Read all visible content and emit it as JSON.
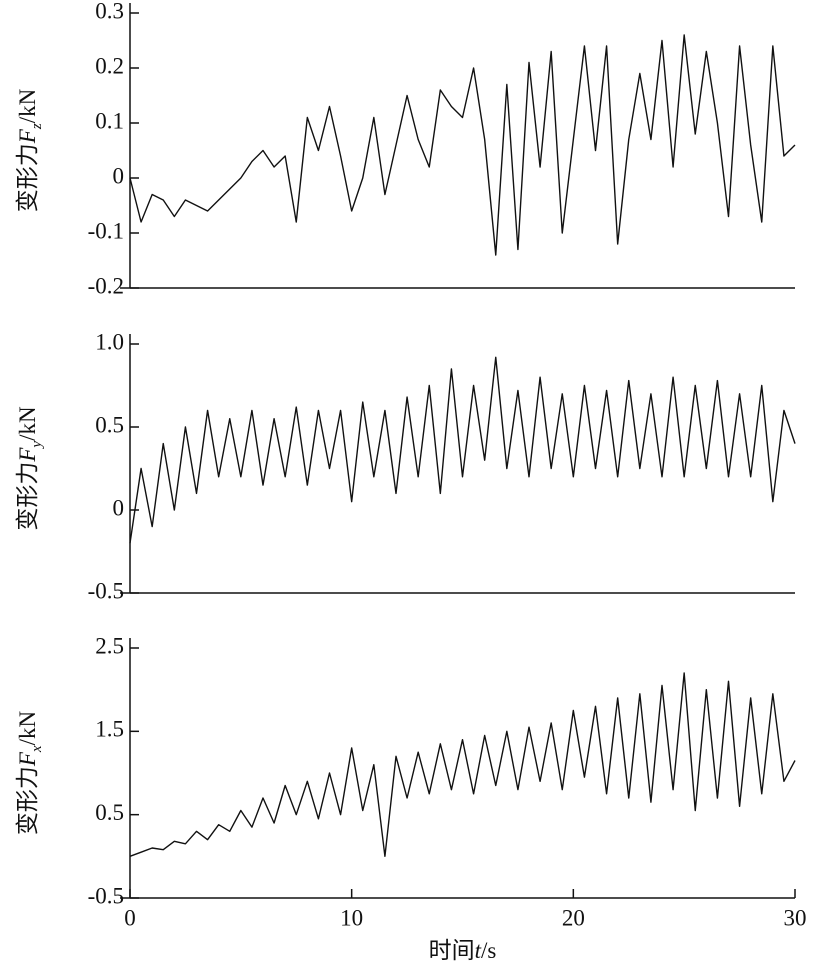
{
  "chart_data": [
    {
      "type": "line",
      "ylabel": [
        "变形力",
        "F",
        "z",
        "/kN"
      ],
      "x": [
        0,
        0.5,
        1,
        1.5,
        2,
        2.5,
        3,
        3.5,
        4,
        4.5,
        5,
        5.5,
        6,
        6.5,
        7,
        7.5,
        8,
        8.5,
        9,
        9.5,
        10,
        10.5,
        11,
        11.5,
        12,
        12.5,
        13,
        13.5,
        14,
        14.5,
        15,
        15.5,
        16,
        16.5,
        17,
        17.5,
        18,
        18.5,
        19,
        19.5,
        20,
        20.5,
        21,
        21.5,
        22,
        22.5,
        23,
        23.5,
        24,
        24.5,
        25,
        25.5,
        26,
        26.5,
        27,
        27.5,
        28,
        28.5,
        29,
        29.5,
        30
      ],
      "values": [
        0.0,
        -0.08,
        -0.03,
        -0.04,
        -0.07,
        -0.04,
        -0.05,
        -0.06,
        -0.04,
        -0.02,
        0.0,
        0.03,
        0.05,
        0.02,
        0.04,
        -0.08,
        0.11,
        0.05,
        0.13,
        0.04,
        -0.06,
        0.0,
        0.11,
        -0.03,
        0.06,
        0.15,
        0.07,
        0.02,
        0.16,
        0.13,
        0.11,
        0.2,
        0.07,
        -0.14,
        0.17,
        -0.13,
        0.21,
        0.02,
        0.23,
        -0.1,
        0.07,
        0.24,
        0.05,
        0.24,
        -0.12,
        0.07,
        0.19,
        0.07,
        0.25,
        0.02,
        0.26,
        0.08,
        0.23,
        0.1,
        -0.07,
        0.24,
        0.06,
        -0.08,
        0.24,
        0.04,
        0.06
      ],
      "color": "#111111",
      "xlim": [
        0,
        30
      ],
      "ylim": [
        -0.2,
        0.3
      ],
      "yticks": [
        0.3,
        0.2,
        0.1,
        0,
        -0.1,
        -0.2
      ]
    },
    {
      "type": "line",
      "ylabel": [
        "变形力",
        "F",
        "y",
        "/kN"
      ],
      "x": [
        0,
        0.5,
        1,
        1.5,
        2,
        2.5,
        3,
        3.5,
        4,
        4.5,
        5,
        5.5,
        6,
        6.5,
        7,
        7.5,
        8,
        8.5,
        9,
        9.5,
        10,
        10.5,
        11,
        11.5,
        12,
        12.5,
        13,
        13.5,
        14,
        14.5,
        15,
        15.5,
        16,
        16.5,
        17,
        17.5,
        18,
        18.5,
        19,
        19.5,
        20,
        20.5,
        21,
        21.5,
        22,
        22.5,
        23,
        23.5,
        24,
        24.5,
        25,
        25.5,
        26,
        26.5,
        27,
        27.5,
        28,
        28.5,
        29,
        29.5,
        30
      ],
      "values": [
        -0.2,
        0.25,
        -0.1,
        0.4,
        0.0,
        0.5,
        0.1,
        0.6,
        0.2,
        0.55,
        0.2,
        0.6,
        0.15,
        0.55,
        0.2,
        0.62,
        0.15,
        0.6,
        0.25,
        0.6,
        0.05,
        0.65,
        0.2,
        0.6,
        0.1,
        0.68,
        0.2,
        0.75,
        0.1,
        0.85,
        0.2,
        0.75,
        0.3,
        0.92,
        0.25,
        0.72,
        0.2,
        0.8,
        0.25,
        0.7,
        0.2,
        0.75,
        0.25,
        0.72,
        0.2,
        0.78,
        0.25,
        0.7,
        0.2,
        0.8,
        0.2,
        0.75,
        0.25,
        0.78,
        0.2,
        0.7,
        0.2,
        0.75,
        0.05,
        0.6,
        0.4
      ],
      "color": "#111111",
      "xlim": [
        0,
        30
      ],
      "ylim": [
        -0.5,
        1.0
      ],
      "yticks": [
        {
          "value": 1,
          "label": "1.0"
        },
        0.5,
        0,
        -0.5
      ]
    },
    {
      "type": "line",
      "ylabel": [
        "变形力",
        "F",
        "x",
        "/kN"
      ],
      "xlabel": [
        "时间",
        "t",
        "/s"
      ],
      "x": [
        0,
        0.5,
        1,
        1.5,
        2,
        2.5,
        3,
        3.5,
        4,
        4.5,
        5,
        5.5,
        6,
        6.5,
        7,
        7.5,
        8,
        8.5,
        9,
        9.5,
        10,
        10.5,
        11,
        11.5,
        12,
        12.5,
        13,
        13.5,
        14,
        14.5,
        15,
        15.5,
        16,
        16.5,
        17,
        17.5,
        18,
        18.5,
        19,
        19.5,
        20,
        20.5,
        21,
        21.5,
        22,
        22.5,
        23,
        23.5,
        24,
        24.5,
        25,
        25.5,
        26,
        26.5,
        27,
        27.5,
        28,
        28.5,
        29,
        29.5,
        30
      ],
      "values": [
        0.0,
        0.05,
        0.1,
        0.08,
        0.18,
        0.15,
        0.3,
        0.2,
        0.38,
        0.3,
        0.55,
        0.35,
        0.7,
        0.4,
        0.85,
        0.5,
        0.9,
        0.45,
        1.0,
        0.5,
        1.3,
        0.55,
        1.1,
        0.0,
        1.2,
        0.7,
        1.25,
        0.75,
        1.35,
        0.8,
        1.4,
        0.75,
        1.45,
        0.85,
        1.5,
        0.8,
        1.55,
        0.9,
        1.6,
        0.8,
        1.75,
        0.95,
        1.8,
        0.75,
        1.9,
        0.7,
        1.95,
        0.65,
        2.05,
        0.8,
        2.2,
        0.55,
        2.0,
        0.7,
        2.1,
        0.6,
        1.9,
        0.75,
        1.95,
        0.9,
        1.15
      ],
      "color": "#111111",
      "xlim": [
        0,
        30
      ],
      "ylim": [
        -0.5,
        2.5
      ],
      "yticks": [
        2.5,
        1.5,
        0.5,
        -0.5
      ],
      "xticks": [
        0,
        10,
        20,
        30
      ]
    }
  ]
}
